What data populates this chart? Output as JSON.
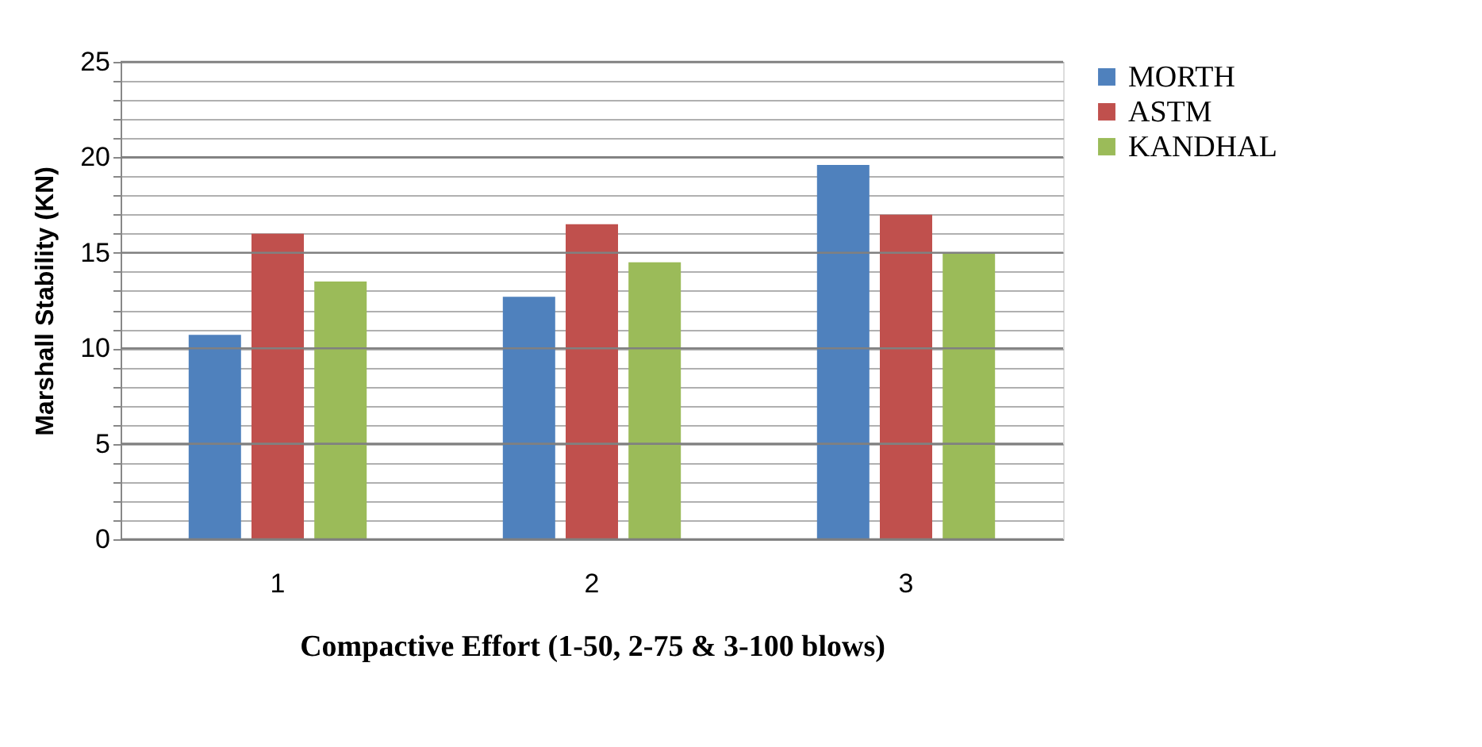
{
  "chart_data": {
    "type": "bar",
    "xlabel": "Compactive Effort (1-50, 2-75 & 3-100 blows)",
    "ylabel": "Marshall Stability (KN)",
    "categories": [
      "1",
      "2",
      "3"
    ],
    "series": [
      {
        "name": "MORTH",
        "color": "#4f81bd",
        "values": [
          10.7,
          12.7,
          19.6
        ]
      },
      {
        "name": "ASTM",
        "color": "#c0504d",
        "values": [
          16.0,
          16.5,
          17.0
        ]
      },
      {
        "name": "KANDHAL",
        "color": "#9bbb59",
        "values": [
          13.5,
          14.5,
          15.0
        ]
      }
    ],
    "ylim": [
      0,
      25
    ],
    "yticks": [
      0,
      {
        "value": 1,
        "label": null
      },
      {
        "value": 2,
        "label": null
      },
      {
        "value": 3,
        "label": null
      },
      {
        "value": 4,
        "label": null
      },
      5,
      {
        "value": 6,
        "label": null
      },
      {
        "value": 7,
        "label": null
      },
      {
        "value": 8,
        "label": null
      },
      {
        "value": 9,
        "label": null
      },
      10,
      {
        "value": 11,
        "label": null
      },
      {
        "value": 12,
        "label": null
      },
      {
        "value": 13,
        "label": null
      },
      {
        "value": 14,
        "label": null
      },
      15,
      {
        "value": 16,
        "label": null
      },
      {
        "value": 17,
        "label": null
      },
      {
        "value": 18,
        "label": null
      },
      {
        "value": 19,
        "label": null
      },
      20,
      {
        "value": 21,
        "label": null
      },
      {
        "value": 22,
        "label": null
      },
      {
        "value": 23,
        "label": null
      },
      {
        "value": 24,
        "label": null
      },
      25
    ],
    "grid": "y",
    "legend": "right"
  }
}
